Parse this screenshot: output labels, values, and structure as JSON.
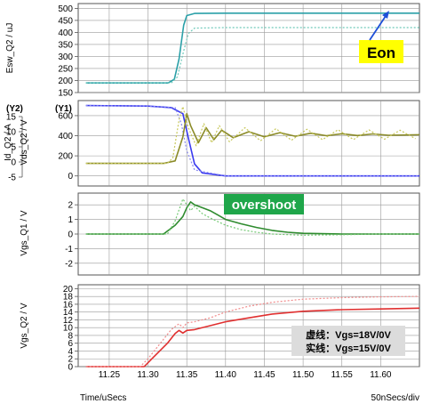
{
  "chart_data": [
    {
      "type": "line",
      "ylabel": "Esw_Q2 / uJ",
      "ylim": [
        150,
        520
      ],
      "yticks": [
        150,
        200,
        250,
        300,
        350,
        400,
        450,
        500
      ],
      "annotation": "Eon",
      "series": [
        {
          "style": "solid",
          "color": "#2aa0a8",
          "x": [
            11.22,
            11.326,
            11.334,
            11.34,
            11.346,
            11.35,
            11.36,
            11.4,
            11.65
          ],
          "values": [
            190,
            190,
            205,
            290,
            430,
            470,
            479,
            480,
            480
          ]
        },
        {
          "style": "dotted",
          "color": "#6cc8b8",
          "x": [
            11.22,
            11.33,
            11.338,
            11.345,
            11.352,
            11.36,
            11.4,
            11.65
          ],
          "values": [
            190,
            190,
            215,
            310,
            395,
            418,
            420,
            420
          ]
        }
      ]
    },
    {
      "type": "line",
      "ylabel_y2": "Id_Q2 / A",
      "ylabel_y1": "Vds_Q2 / V",
      "axis_tag_y2": "(Y2)",
      "axis_tag_y1": "(Y1)",
      "ylim": [
        -100,
        750
      ],
      "yticks": [
        0,
        200,
        400,
        600
      ],
      "yticks_y2": [
        -5,
        0,
        5,
        10,
        15
      ],
      "series": [
        {
          "style": "solid",
          "color": "#3a3af0",
          "x": [
            11.22,
            11.3,
            11.33,
            11.345,
            11.352,
            11.36,
            11.37,
            11.4,
            11.65
          ],
          "values": [
            700,
            695,
            680,
            620,
            380,
            120,
            30,
            0,
            0
          ]
        },
        {
          "style": "dotted",
          "color": "#8a8af0",
          "x": [
            11.22,
            11.3,
            11.335,
            11.343,
            11.35,
            11.36,
            11.4,
            11.65
          ],
          "values": [
            700,
            695,
            680,
            520,
            250,
            60,
            0,
            0
          ]
        },
        {
          "style": "solid",
          "color": "#8b8b28",
          "x": [
            11.22,
            11.32,
            11.335,
            11.345,
            11.35,
            11.355,
            11.365,
            11.375,
            11.385,
            11.395,
            11.41,
            11.43,
            11.45,
            11.47,
            11.49,
            11.51,
            11.53,
            11.55,
            11.57,
            11.59,
            11.61,
            11.65
          ],
          "values": [
            125,
            125,
            150,
            390,
            620,
            500,
            330,
            480,
            360,
            455,
            380,
            440,
            390,
            430,
            395,
            425,
            400,
            420,
            402,
            418,
            405,
            410
          ]
        },
        {
          "style": "dotted",
          "color": "#c8c85a",
          "x": [
            11.22,
            11.325,
            11.332,
            11.34,
            11.345,
            11.352,
            11.362,
            11.372,
            11.382,
            11.392,
            11.405,
            11.425,
            11.445,
            11.465,
            11.485,
            11.505,
            11.525,
            11.545,
            11.565,
            11.585,
            11.605,
            11.625,
            11.645
          ],
          "values": [
            125,
            125,
            180,
            560,
            690,
            480,
            300,
            520,
            330,
            500,
            340,
            480,
            350,
            470,
            355,
            465,
            360,
            460,
            362,
            458,
            365,
            455,
            370
          ]
        }
      ]
    },
    {
      "type": "line",
      "ylabel": "Vgs_Q1 / V",
      "ylim": [
        -2.8,
        2.8
      ],
      "yticks": [
        -2,
        -1,
        0,
        1,
        2
      ],
      "annotation": "overshoot",
      "series": [
        {
          "style": "solid",
          "color": "#2e8b2e",
          "x": [
            11.22,
            11.32,
            11.335,
            11.345,
            11.35,
            11.355,
            11.36,
            11.37,
            11.38,
            11.39,
            11.4,
            11.42,
            11.44,
            11.46,
            11.48,
            11.5,
            11.55,
            11.6,
            11.65
          ],
          "values": [
            0,
            0,
            0.6,
            1.2,
            1.8,
            2.2,
            2.0,
            1.8,
            1.6,
            1.3,
            1.0,
            0.7,
            0.45,
            0.25,
            0.12,
            0.05,
            0.0,
            0.0,
            0.0
          ]
        },
        {
          "style": "dotted",
          "color": "#72c872",
          "x": [
            11.22,
            11.325,
            11.335,
            11.345,
            11.35,
            11.355,
            11.36,
            11.37,
            11.38,
            11.4,
            11.42,
            11.44,
            11.46,
            11.5,
            11.55,
            11.6,
            11.65
          ],
          "values": [
            0,
            0,
            0.9,
            2.4,
            2.0,
            1.6,
            1.9,
            1.4,
            1.1,
            0.6,
            0.3,
            0.12,
            0.0,
            -0.08,
            -0.05,
            0.0,
            0.0
          ]
        }
      ]
    },
    {
      "type": "line",
      "ylabel": "Vgs_Q2 / V",
      "ylim": [
        0,
        21
      ],
      "yticks": [
        0,
        2,
        4,
        6,
        8,
        10,
        12,
        14,
        16,
        18,
        20
      ],
      "xlabel": "Time/uSecs",
      "xscale_label": "50nSecs/div",
      "xlim": [
        11.21,
        11.65
      ],
      "xticks": [
        11.25,
        11.3,
        11.35,
        11.4,
        11.45,
        11.5,
        11.55,
        11.6
      ],
      "legend": [
        "虚线：Vgs=18V/0V",
        "实线：Vgs=15V/0V"
      ],
      "series": [
        {
          "style": "solid",
          "color": "#e03030",
          "x": [
            11.22,
            11.295,
            11.305,
            11.325,
            11.335,
            11.34,
            11.345,
            11.35,
            11.36,
            11.38,
            11.4,
            11.43,
            11.46,
            11.5,
            11.55,
            11.6,
            11.65
          ],
          "values": [
            0,
            0,
            2,
            6,
            8.5,
            9.3,
            8.6,
            9.3,
            9.5,
            10.5,
            11.5,
            12.5,
            13.5,
            14.2,
            14.6,
            14.8,
            15
          ]
        },
        {
          "style": "dotted",
          "color": "#f08a8a",
          "x": [
            11.22,
            11.29,
            11.3,
            11.32,
            11.33,
            11.34,
            11.345,
            11.35,
            11.36,
            11.38,
            11.4,
            11.43,
            11.46,
            11.5,
            11.55,
            11.6,
            11.65
          ],
          "values": [
            0,
            0,
            2,
            7,
            9.5,
            11,
            10,
            11.2,
            11.5,
            12.5,
            14,
            15.5,
            16.5,
            17.3,
            17.7,
            17.9,
            18
          ]
        }
      ]
    }
  ],
  "tick_labels": {
    "p1": [
      "500",
      "450",
      "400",
      "350",
      "300",
      "250",
      "200",
      "150"
    ],
    "p2_y1": [
      "600",
      "400",
      "200",
      "0"
    ],
    "p2_y2": [
      "15",
      "10",
      "5",
      "0",
      "-5"
    ],
    "p3": [
      "2",
      "1",
      "0",
      "-1",
      "-2"
    ],
    "p4": [
      "20",
      "18",
      "16",
      "14",
      "12",
      "10",
      "8",
      "6",
      "4",
      "2",
      "0"
    ],
    "x": [
      "11.25",
      "11.30",
      "11.35",
      "11.40",
      "11.45",
      "11.50",
      "11.55",
      "11.60"
    ]
  }
}
